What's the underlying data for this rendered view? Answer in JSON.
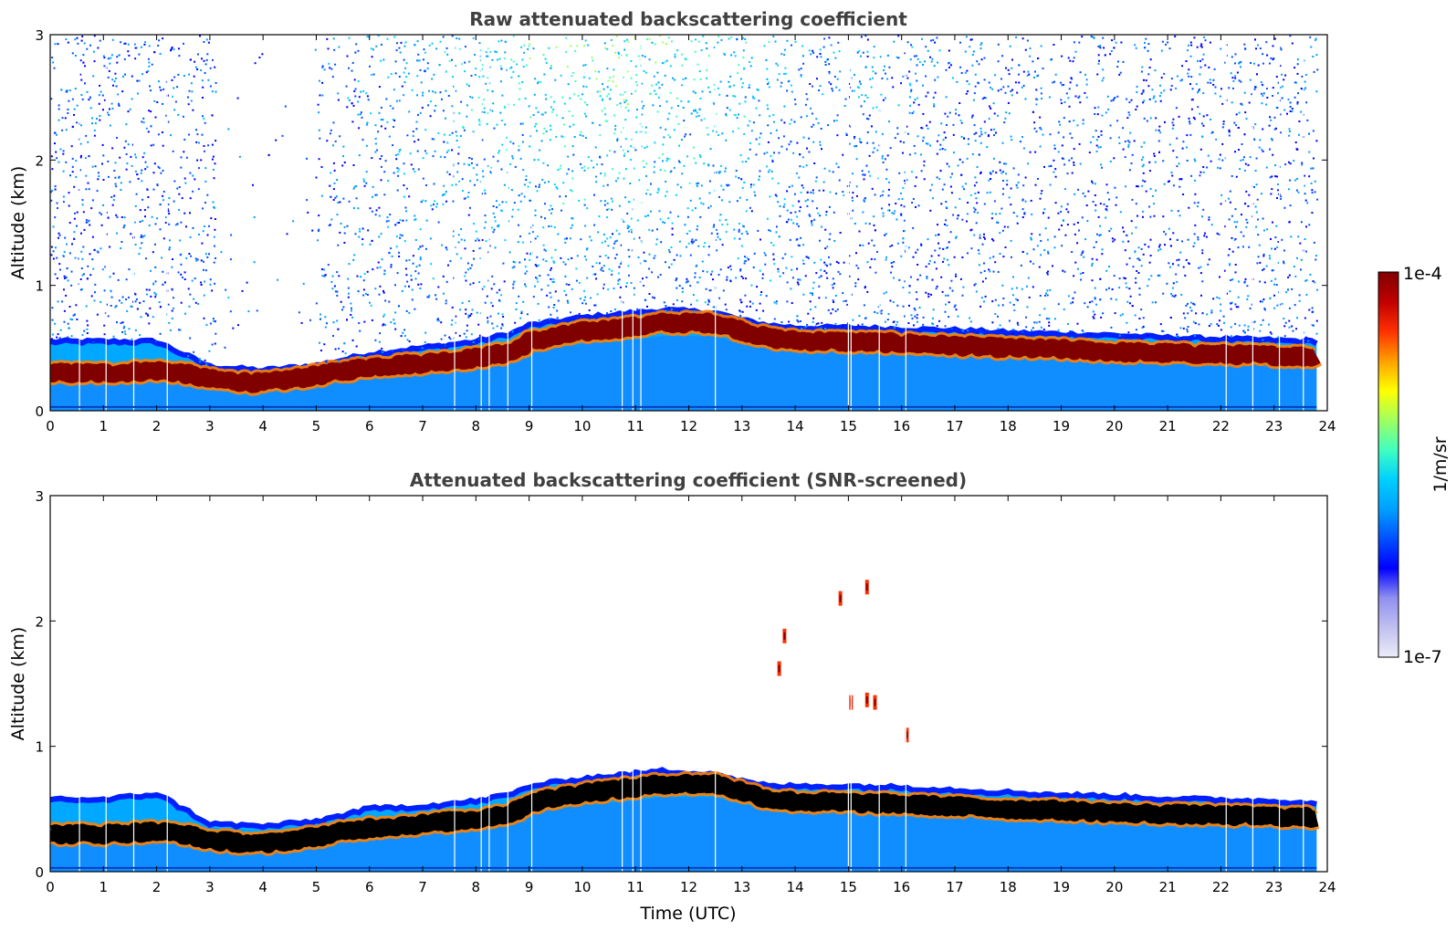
{
  "chart_data": [
    {
      "type": "heatmap",
      "id": "raw",
      "title": "Raw attenuated backscattering coefficient",
      "xlabel": "",
      "ylabel": "Altitude (km)",
      "xlim": [
        0,
        24
      ],
      "ylim": [
        0,
        3
      ],
      "xticks": [
        0,
        1,
        2,
        3,
        4,
        5,
        6,
        7,
        8,
        9,
        10,
        11,
        12,
        13,
        14,
        15,
        16,
        17,
        18,
        19,
        20,
        21,
        22,
        23,
        24
      ],
      "yticks": [
        0,
        1,
        2,
        3
      ],
      "noise_above_layer": true,
      "boundary_layer_top_km": [
        [
          0,
          0.55
        ],
        [
          1,
          0.55
        ],
        [
          2,
          0.55
        ],
        [
          2.5,
          0.45
        ],
        [
          3,
          0.35
        ],
        [
          4,
          0.32
        ],
        [
          5,
          0.36
        ],
        [
          6,
          0.45
        ],
        [
          7,
          0.5
        ],
        [
          8,
          0.55
        ],
        [
          8.7,
          0.62
        ],
        [
          9,
          0.68
        ],
        [
          10,
          0.74
        ],
        [
          11,
          0.78
        ],
        [
          11.5,
          0.8
        ],
        [
          12.5,
          0.78
        ],
        [
          13,
          0.72
        ],
        [
          13.5,
          0.68
        ],
        [
          14,
          0.66
        ],
        [
          15,
          0.66
        ],
        [
          16,
          0.65
        ],
        [
          17,
          0.64
        ],
        [
          18,
          0.62
        ],
        [
          19,
          0.61
        ],
        [
          20,
          0.6
        ],
        [
          21,
          0.58
        ],
        [
          22,
          0.57
        ],
        [
          23,
          0.56
        ],
        [
          23.8,
          0.55
        ]
      ],
      "aerosol_layer_center_km": [
        [
          0,
          0.3
        ],
        [
          1,
          0.3
        ],
        [
          2,
          0.32
        ],
        [
          2.5,
          0.3
        ],
        [
          3,
          0.25
        ],
        [
          4,
          0.22
        ],
        [
          5,
          0.28
        ],
        [
          6,
          0.35
        ],
        [
          7,
          0.38
        ],
        [
          8,
          0.42
        ],
        [
          8.7,
          0.47
        ],
        [
          9,
          0.55
        ],
        [
          10,
          0.63
        ],
        [
          11,
          0.67
        ],
        [
          11.5,
          0.7
        ],
        [
          12.5,
          0.7
        ],
        [
          13,
          0.64
        ],
        [
          13.5,
          0.58
        ],
        [
          14,
          0.56
        ],
        [
          15,
          0.55
        ],
        [
          16,
          0.54
        ],
        [
          17,
          0.52
        ],
        [
          18,
          0.5
        ],
        [
          19,
          0.49
        ],
        [
          20,
          0.47
        ],
        [
          21,
          0.46
        ],
        [
          22,
          0.45
        ],
        [
          23,
          0.44
        ],
        [
          23.8,
          0.43
        ]
      ],
      "gaps_hours": [
        0.55,
        1.05,
        1.57,
        2.2,
        7.6,
        8.1,
        8.25,
        8.6,
        9.05,
        10.75,
        10.95,
        11.1,
        12.5,
        15.0,
        15.05,
        15.58,
        16.08,
        22.1,
        22.6,
        23.1,
        23.55
      ]
    },
    {
      "type": "heatmap",
      "id": "screened",
      "title": "Attenuated backscattering coefficient (SNR-screened)",
      "xlabel": "Time (UTC)",
      "ylabel": "Altitude (km)",
      "xlim": [
        0,
        24
      ],
      "ylim": [
        0,
        3
      ],
      "xticks": [
        0,
        1,
        2,
        3,
        4,
        5,
        6,
        7,
        8,
        9,
        10,
        11,
        12,
        13,
        14,
        15,
        16,
        17,
        18,
        19,
        20,
        21,
        22,
        23,
        24
      ],
      "yticks": [
        0,
        1,
        2,
        3
      ],
      "noise_above_layer": false,
      "boundary_layer_top_km": [
        [
          0,
          0.58
        ],
        [
          1,
          0.57
        ],
        [
          2,
          0.62
        ],
        [
          2.5,
          0.5
        ],
        [
          3,
          0.38
        ],
        [
          4,
          0.36
        ],
        [
          5,
          0.4
        ],
        [
          6,
          0.5
        ],
        [
          7,
          0.52
        ],
        [
          8,
          0.56
        ],
        [
          8.7,
          0.62
        ],
        [
          9,
          0.68
        ],
        [
          10,
          0.74
        ],
        [
          11,
          0.78
        ],
        [
          11.5,
          0.8
        ],
        [
          12.5,
          0.78
        ],
        [
          13,
          0.72
        ],
        [
          13.5,
          0.68
        ],
        [
          14,
          0.68
        ],
        [
          15,
          0.68
        ],
        [
          16,
          0.67
        ],
        [
          17,
          0.65
        ],
        [
          18,
          0.63
        ],
        [
          19,
          0.61
        ],
        [
          20,
          0.6
        ],
        [
          21,
          0.58
        ],
        [
          22,
          0.57
        ],
        [
          23,
          0.56
        ],
        [
          23.8,
          0.55
        ]
      ],
      "aerosol_layer_center_km": [
        [
          0,
          0.3
        ],
        [
          1,
          0.3
        ],
        [
          2,
          0.32
        ],
        [
          2.5,
          0.3
        ],
        [
          3,
          0.25
        ],
        [
          4,
          0.22
        ],
        [
          5,
          0.28
        ],
        [
          6,
          0.35
        ],
        [
          7,
          0.38
        ],
        [
          8,
          0.42
        ],
        [
          8.7,
          0.47
        ],
        [
          9,
          0.55
        ],
        [
          10,
          0.63
        ],
        [
          11,
          0.67
        ],
        [
          11.5,
          0.7
        ],
        [
          12.5,
          0.7
        ],
        [
          13,
          0.64
        ],
        [
          13.5,
          0.58
        ],
        [
          14,
          0.56
        ],
        [
          15,
          0.55
        ],
        [
          16,
          0.54
        ],
        [
          17,
          0.52
        ],
        [
          18,
          0.5
        ],
        [
          19,
          0.49
        ],
        [
          20,
          0.47
        ],
        [
          21,
          0.46
        ],
        [
          22,
          0.45
        ],
        [
          23,
          0.44
        ],
        [
          23.8,
          0.43
        ]
      ],
      "isolated_features": [
        {
          "time": 13.7,
          "altitude_km": 1.62
        },
        {
          "time": 13.8,
          "altitude_km": 1.88
        },
        {
          "time": 14.85,
          "altitude_km": 2.18
        },
        {
          "time": 15.35,
          "altitude_km": 2.27
        },
        {
          "time": 15.05,
          "altitude_km": 1.35
        },
        {
          "time": 15.35,
          "altitude_km": 1.37
        },
        {
          "time": 15.5,
          "altitude_km": 1.35
        },
        {
          "time": 16.1,
          "altitude_km": 1.09
        }
      ],
      "gaps_hours": [
        0.55,
        1.05,
        1.57,
        2.2,
        7.6,
        8.1,
        8.25,
        8.6,
        9.05,
        10.75,
        10.95,
        11.1,
        12.5,
        15.0,
        15.05,
        15.58,
        16.08,
        22.1,
        22.6,
        23.1,
        23.55
      ]
    }
  ],
  "colorbar": {
    "label": "1/m/sr",
    "max_label": "1e-4",
    "min_label": "1e-7",
    "colormap": "jet",
    "stops": [
      "#ececf8",
      "#c0c0f0",
      "#9090f0",
      "#0000ff",
      "#0050ff",
      "#00a0ff",
      "#00d0ff",
      "#40ffc0",
      "#a0ff60",
      "#ffff00",
      "#ffa000",
      "#ff3000",
      "#c00000",
      "#800000"
    ]
  },
  "colors": {
    "layer_core_raw": "#800000",
    "layer_core_screened": "#000000",
    "background": "#ffffff"
  }
}
